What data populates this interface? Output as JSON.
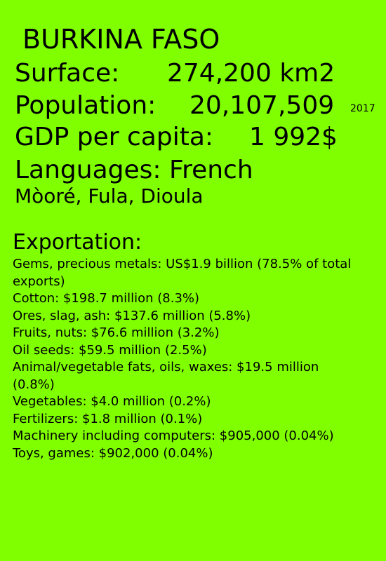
{
  "title": "BURKINA FASO",
  "surface": {
    "label": "Surface:",
    "value": "274,200 km2"
  },
  "population": {
    "label": "Population:",
    "value": "20,107,509",
    "year": "2017"
  },
  "gdp": {
    "label": "GDP per capita:",
    "value": "1 992$"
  },
  "languages": {
    "label": "Languages: French",
    "others": "Mòoré, Fula, Dioula"
  },
  "exportation": {
    "heading": "Exportation:",
    "items": [
      "Gems, precious metals: US$1.9 billion (78.5% of total exports)",
      "Cotton: $198.7 million (8.3%)",
      "Ores, slag, ash: $137.6 million (5.8%)",
      "Fruits, nuts: $76.6 million (3.2%)",
      "Oil seeds: $59.5 million (2.5%)",
      "Animal/vegetable fats, oils, waxes: $19.5 million (0.8%)",
      "Vegetables: $4.0 million (0.2%)",
      "Fertilizers: $1.8 million (0.1%)",
      "Machinery including computers: $905,000 (0.04%)",
      "Toys, games: $902,000 (0.04%)"
    ]
  },
  "colors": {
    "background": "#80ff00",
    "text": "#000000"
  }
}
